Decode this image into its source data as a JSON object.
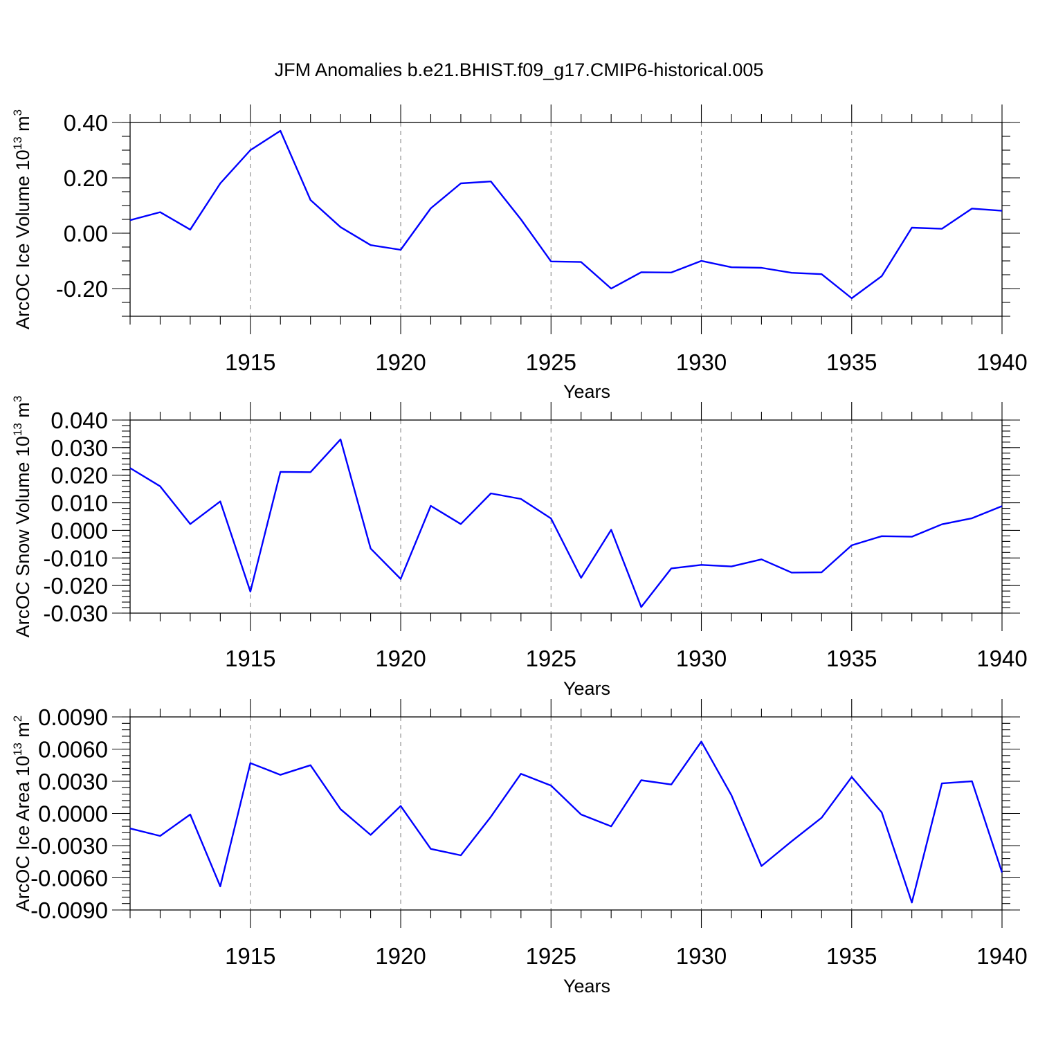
{
  "title": "JFM Anomalies b.e21.BHIST.f09_g17.CMIP6-historical.005",
  "colors": {
    "line": "#0000ff",
    "grid": "#888888",
    "axis": "#000000"
  },
  "chart_data": [
    {
      "type": "line",
      "xlabel": "Years",
      "ylabel": "ArcOC Ice Volume 10",
      "ylabel_sup": "13",
      "ylabel_unit": " m",
      "ylabel_unit_sup": "3",
      "xlim": [
        1911,
        1940
      ],
      "ylim": [
        -0.3,
        0.4
      ],
      "xticks": [
        1915,
        1920,
        1925,
        1930,
        1935,
        1940
      ],
      "xtick_labels": [
        "1915",
        "1920",
        "1925",
        "1930",
        "1935",
        "1940"
      ],
      "yticks": [
        0.4,
        0.2,
        0.0,
        -0.2
      ],
      "ytick_labels": [
        "0.40",
        "0.20",
        "0.00",
        "-0.20"
      ],
      "y_minor_step": 0.05,
      "grid": "vertical dashed at major x ticks",
      "x": [
        1911,
        1912,
        1913,
        1914,
        1915,
        1916,
        1917,
        1918,
        1919,
        1920,
        1921,
        1922,
        1923,
        1924,
        1925,
        1926,
        1927,
        1928,
        1929,
        1930,
        1931,
        1932,
        1933,
        1934,
        1935,
        1936,
        1937,
        1938,
        1939,
        1940
      ],
      "y": [
        0.047,
        0.076,
        0.013,
        0.18,
        0.3,
        0.37,
        0.12,
        0.022,
        -0.043,
        -0.06,
        0.09,
        0.18,
        0.187,
        0.05,
        -0.102,
        -0.104,
        -0.2,
        -0.141,
        -0.142,
        -0.1,
        -0.123,
        -0.125,
        -0.143,
        -0.148,
        -0.235,
        -0.155,
        0.02,
        0.016,
        0.089,
        0.081
      ]
    },
    {
      "type": "line",
      "xlabel": "Years",
      "ylabel": "ArcOC Snow Volume 10",
      "ylabel_sup": "13",
      "ylabel_unit": " m",
      "ylabel_unit_sup": "3",
      "xlim": [
        1911,
        1940
      ],
      "ylim": [
        -0.03,
        0.04
      ],
      "xticks": [
        1915,
        1920,
        1925,
        1930,
        1935,
        1940
      ],
      "xtick_labels": [
        "1915",
        "1920",
        "1925",
        "1930",
        "1935",
        "1940"
      ],
      "yticks": [
        0.04,
        0.03,
        0.02,
        0.01,
        0.0,
        -0.01,
        -0.02,
        -0.03
      ],
      "ytick_labels": [
        "0.040",
        "0.030",
        "0.020",
        "0.010",
        "0.000",
        "-0.010",
        "-0.020",
        "-0.030"
      ],
      "y_minor_step": 0.002,
      "grid": "vertical dashed at major x ticks",
      "x": [
        1911,
        1912,
        1913,
        1914,
        1915,
        1916,
        1917,
        1918,
        1919,
        1920,
        1921,
        1922,
        1923,
        1924,
        1925,
        1926,
        1927,
        1928,
        1929,
        1930,
        1931,
        1932,
        1933,
        1934,
        1935,
        1936,
        1937,
        1938,
        1939,
        1940
      ],
      "y": [
        0.0226,
        0.016,
        0.0023,
        0.0105,
        -0.0222,
        0.0212,
        0.0211,
        0.033,
        -0.0066,
        -0.0176,
        0.0089,
        0.0023,
        0.0134,
        0.0114,
        0.0043,
        -0.0172,
        0.0002,
        -0.0278,
        -0.0138,
        -0.0125,
        -0.0131,
        -0.0105,
        -0.0153,
        -0.0152,
        -0.0054,
        -0.0021,
        -0.0023,
        0.0022,
        0.0044,
        0.0088
      ]
    },
    {
      "type": "line",
      "xlabel": "Years",
      "ylabel": "ArcOC Ice Area 10",
      "ylabel_sup": "13",
      "ylabel_unit": " m",
      "ylabel_unit_sup": "2",
      "xlim": [
        1911,
        1940
      ],
      "ylim": [
        -0.009,
        0.009
      ],
      "xticks": [
        1915,
        1920,
        1925,
        1930,
        1935,
        1940
      ],
      "xtick_labels": [
        "1915",
        "1920",
        "1925",
        "1930",
        "1935",
        "1940"
      ],
      "yticks": [
        0.009,
        0.006,
        0.003,
        0.0,
        -0.003,
        -0.006,
        -0.009
      ],
      "ytick_labels": [
        "0.0090",
        "0.0060",
        "0.0030",
        "0.0000",
        "-0.0030",
        "-0.0060",
        "-0.0090"
      ],
      "y_minor_step": 0.0006,
      "grid": "vertical dashed at major x ticks",
      "x": [
        1911,
        1912,
        1913,
        1914,
        1915,
        1916,
        1917,
        1918,
        1919,
        1920,
        1921,
        1922,
        1923,
        1924,
        1925,
        1926,
        1927,
        1928,
        1929,
        1930,
        1931,
        1932,
        1933,
        1934,
        1935,
        1936,
        1937,
        1938,
        1939,
        1940
      ],
      "y": [
        -0.0014,
        -0.0021,
        -0.0001,
        -0.0068,
        0.0047,
        0.0036,
        0.0045,
        0.0004,
        -0.002,
        0.0007,
        -0.0033,
        -0.0039,
        -0.0003,
        0.0037,
        0.0026,
        -0.0001,
        -0.0012,
        0.0031,
        0.0027,
        0.0067,
        0.0017,
        -0.0049,
        -0.0026,
        -0.0004,
        0.0034,
        0.0001,
        -0.0083,
        0.0028,
        0.003,
        -0.0055
      ]
    }
  ]
}
